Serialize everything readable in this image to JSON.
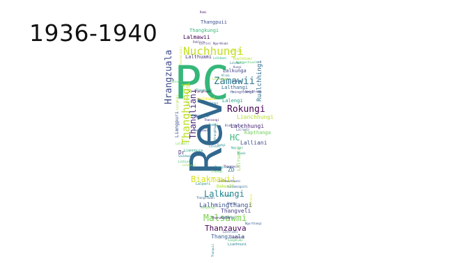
{
  "title": "1936-1940",
  "words": [
    {
      "text": "PC",
      "color": "#35b779"
    },
    {
      "text": "Rev",
      "color": "#31688e"
    },
    {
      "text": "Nuchhungi",
      "color": "#c2df23"
    },
    {
      "text": "Hrangzuala",
      "color": "#3e4989"
    },
    {
      "text": "Zamawii",
      "color": "#2a788e"
    },
    {
      "text": "Rokungi",
      "color": "#440154"
    },
    {
      "text": "Thangliani",
      "color": "#482878"
    },
    {
      "text": "Thanghungi",
      "color": "#bddf26"
    },
    {
      "text": "Biakmawii",
      "color": "#d8e219"
    },
    {
      "text": "Malsawmi",
      "color": "#7ad151"
    },
    {
      "text": "Lalkungi",
      "color": "#26828e"
    },
    {
      "text": "Thanzauva",
      "color": "#440154"
    },
    {
      "text": "Lalhmingthangi",
      "color": "#3b528b"
    },
    {
      "text": "Thangveli",
      "color": "#433e85"
    },
    {
      "text": "Thangzuala",
      "color": "#355f8d"
    },
    {
      "text": "Rualchhingi",
      "color": "#2e6e8e"
    },
    {
      "text": "Lalchhungi",
      "color": "#482475"
    },
    {
      "text": "Lalliani",
      "color": "#3e4a89"
    },
    {
      "text": "Lianchhungi",
      "color": "#b5de2b"
    },
    {
      "text": "Lalthuami",
      "color": "#46337e"
    },
    {
      "text": "Lalkunga",
      "color": "#414487"
    },
    {
      "text": "Lalthangi",
      "color": "#31688e"
    },
    {
      "text": "Lalengi",
      "color": "#1f9e89"
    },
    {
      "text": "Lalmawii",
      "color": "#440154"
    },
    {
      "text": "Thangkungi",
      "color": "#35b779"
    },
    {
      "text": "Thangpuii",
      "color": "#3b528b"
    },
    {
      "text": "Kapthanga",
      "color": "#6ece58"
    },
    {
      "text": "Lalruata",
      "color": "#84d44b"
    },
    {
      "text": "Liangpuri",
      "color": "#3b528b"
    },
    {
      "text": "HC",
      "color": "#35b779"
    },
    {
      "text": "ZD",
      "color": "#2c728e"
    },
    {
      "text": "Dr",
      "color": "#482878"
    },
    {
      "text": "Bakweli",
      "color": "#ad2"
    },
    {
      "text": "Lalpari",
      "color": "#21918c"
    },
    {
      "text": "Hmingthangi",
      "color": "#3e4989"
    },
    {
      "text": "Lalmami",
      "color": "#fde725"
    },
    {
      "text": "Thanzuala",
      "color": "#472d7b"
    },
    {
      "text": "Lianngura",
      "color": "#1fa187"
    },
    {
      "text": "Sangkungi",
      "color": "#6ece58"
    },
    {
      "text": "Thangthuami",
      "color": "#31688e"
    },
    {
      "text": "Lianhnuni",
      "color": "#26828e"
    },
    {
      "text": "Rualkhumi",
      "color": "#b8de29"
    },
    {
      "text": "Laldawli",
      "color": "#2a788e"
    },
    {
      "text": "Hmangaihzuali",
      "color": "#48c16e"
    },
    {
      "text": "Ngurkhumi",
      "color": "#472f7d"
    },
    {
      "text": "Thangkhumi",
      "color": "#440154"
    },
    {
      "text": "Lalhmingi",
      "color": "#a2da37"
    },
    {
      "text": "Laltani",
      "color": "#2c728e"
    },
    {
      "text": "Lalbiaki",
      "color": "#3aba76"
    },
    {
      "text": "Thangmawii",
      "color": "#3f4788"
    },
    {
      "text": "Liannuni",
      "color": "#481f70"
    },
    {
      "text": "Lalhmingliani",
      "color": "#b0dd2f"
    },
    {
      "text": "Saikhumi",
      "color": "#287c8e"
    },
    {
      "text": "Vanlalzuali",
      "color": "#d0e11c"
    },
    {
      "text": "Lalzuali",
      "color": "#75d054"
    },
    {
      "text": "Thangliana",
      "color": "#1f988b"
    },
    {
      "text": "Lalrini",
      "color": "#443983"
    },
    {
      "text": "Laldiki",
      "color": "#25858e"
    },
    {
      "text": "Biakchhungi",
      "color": "#3f4889"
    },
    {
      "text": "Lalmuani",
      "color": "#90d743"
    },
    {
      "text": "Rohmingi",
      "color": "#2f6c8e"
    },
    {
      "text": "Thangsiami",
      "color": "#1e9c89"
    },
    {
      "text": "Pahlira",
      "color": "#482173"
    },
    {
      "text": "Lalhriati",
      "color": "#3b528b"
    },
    {
      "text": "Kungi",
      "color": "#414487"
    },
    {
      "text": "Hlimi",
      "color": "#297b8e"
    },
    {
      "text": "Hmuaki",
      "color": "#38588c"
    },
    {
      "text": "Chawngi",
      "color": "#5ec962"
    },
    {
      "text": "Dengi",
      "color": "#2d708e"
    },
    {
      "text": "Thangi",
      "color": "#1f948c"
    },
    {
      "text": "Lalnuni",
      "color": "#56c667"
    },
    {
      "text": "Sangi",
      "color": "#24878e"
    },
    {
      "text": "Ngurtei",
      "color": "#20a386"
    },
    {
      "text": "Vanchhungi",
      "color": "#443a83"
    },
    {
      "text": "Hmingi",
      "color": "#3e4c8a"
    },
    {
      "text": "Thansangi",
      "color": "#482576"
    },
    {
      "text": "Lalrema",
      "color": "#c8e020"
    },
    {
      "text": "Hrangkhumi",
      "color": "#2b758e"
    },
    {
      "text": "Lalhmangaihi",
      "color": "#2f6c8e"
    },
    {
      "text": "Rami",
      "color": "#471063"
    },
    {
      "text": "Lalremi",
      "color": "#20928c"
    },
    {
      "text": "Ngurthangi",
      "color": "#365d8d"
    },
    {
      "text": "Lalkhumi",
      "color": "#24aa83"
    },
    {
      "text": "Thanmawii",
      "color": "#482979"
    },
    {
      "text": "Lalruati",
      "color": "#3d4e8a"
    },
    {
      "text": "Mawii",
      "color": "#287d8e"
    },
    {
      "text": "Khumi",
      "color": "#1e9b8a"
    },
    {
      "text": "Lalnghaki",
      "color": "#a8db34"
    },
    {
      "text": "Thanpuii",
      "color": "#27808e"
    },
    {
      "text": "Vanhnuni",
      "color": "#dde318"
    },
    {
      "text": "Sangkhumi",
      "color": "#4ac16d"
    },
    {
      "text": "Lalhmachhuani",
      "color": "#3b528b"
    }
  ]
}
